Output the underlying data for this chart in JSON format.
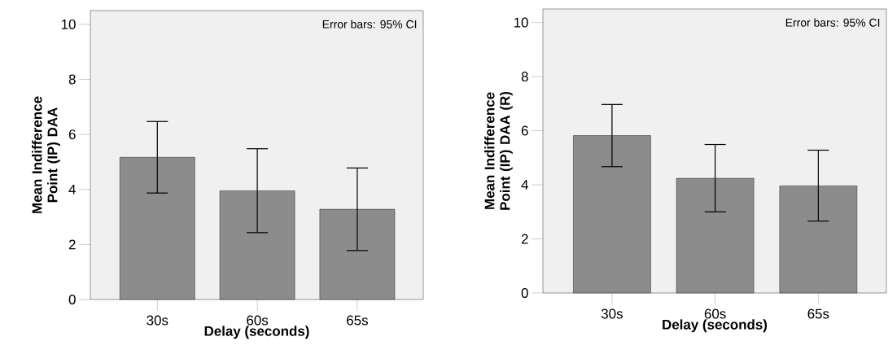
{
  "chart_data": [
    {
      "type": "bar",
      "categories": [
        "30s",
        "60s",
        "65s"
      ],
      "values": [
        5.17,
        3.95,
        3.28
      ],
      "errors": [
        [
          3.87,
          6.47
        ],
        [
          2.43,
          5.48
        ],
        [
          1.78,
          4.78
        ]
      ],
      "color": "#8c8c8c",
      "xlabel": "Delay (seconds)",
      "ylabel": "Mean Indifference Point (IP) DAA",
      "ylim": [
        0,
        10.5
      ],
      "yticks": [
        0,
        2,
        4,
        6,
        8,
        10
      ],
      "annotations": [
        "Error bars: 95% CI"
      ]
    },
    {
      "type": "bar",
      "categories": [
        "30s",
        "60s",
        "65s"
      ],
      "values": [
        5.82,
        4.24,
        3.96
      ],
      "errors": [
        [
          4.67,
          6.97
        ],
        [
          3.0,
          5.49
        ],
        [
          2.66,
          5.28
        ]
      ],
      "color": "#8c8c8c",
      "xlabel": "Delay (seconds)",
      "ylabel": "Mean Indifference Point (IP) DAA (R)",
      "ylim": [
        0,
        10.5
      ],
      "yticks": [
        0,
        2,
        4,
        6,
        8,
        10
      ],
      "annotations": [
        "Error bars: 95% CI"
      ]
    }
  ]
}
